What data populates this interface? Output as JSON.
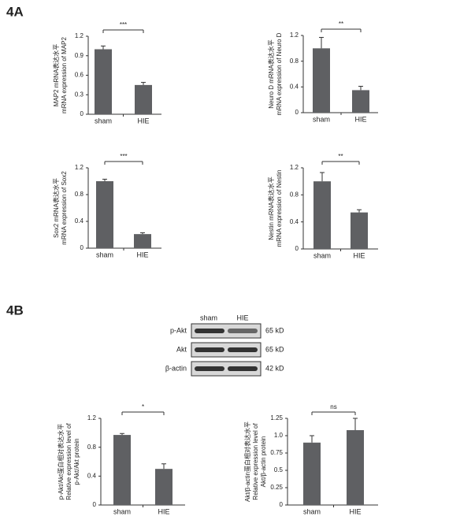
{
  "panels": {
    "a": "4A",
    "b": "4B"
  },
  "blot": {
    "columns": [
      "sham",
      "HIE"
    ],
    "rows": [
      {
        "label": "p-Akt",
        "size": "65 kD"
      },
      {
        "label": "Akt",
        "size": "65 kD"
      },
      {
        "label": "β-actin",
        "size": "42 kD"
      }
    ]
  },
  "chart_data": [
    {
      "type": "bar",
      "ylabel": [
        "MAP2 mRNA表达水平",
        "mRNA expression of MAP2"
      ],
      "categories": [
        "sham",
        "HIE"
      ],
      "values": [
        1.0,
        0.45
      ],
      "errors": [
        0.05,
        0.04
      ],
      "color": "#5f6063",
      "annotation": "***",
      "ylim": [
        0,
        1.2
      ],
      "yticks": [
        0,
        0.3,
        0.6,
        0.9,
        1.2
      ]
    },
    {
      "type": "bar",
      "ylabel": [
        "Neuro D mRNA表达水平",
        "mRNA expression of Neuro D"
      ],
      "categories": [
        "sham",
        "HIE"
      ],
      "values": [
        1.0,
        0.35
      ],
      "errors": [
        0.17,
        0.06
      ],
      "color": "#5f6063",
      "annotation": "**",
      "ylim": [
        0,
        1.2
      ],
      "yticks": [
        0,
        0.4,
        0.8,
        1.2
      ]
    },
    {
      "type": "bar",
      "ylabel": [
        "Sox2 mRNA表达水平",
        "mRNA expression of Sox2"
      ],
      "categories": [
        "sham",
        "HIE"
      ],
      "values": [
        1.0,
        0.21
      ],
      "errors": [
        0.03,
        0.02
      ],
      "color": "#5f6063",
      "annotation": "***",
      "ylim": [
        0,
        1.2
      ],
      "yticks": [
        0,
        0.4,
        0.8,
        1.2
      ]
    },
    {
      "type": "bar",
      "ylabel": [
        "Nestin mRNA表达水平",
        "mRNA expression of Nestin"
      ],
      "categories": [
        "sham",
        "HIE"
      ],
      "values": [
        1.0,
        0.54
      ],
      "errors": [
        0.13,
        0.04
      ],
      "color": "#5f6063",
      "annotation": "**",
      "ylim": [
        0,
        1.2
      ],
      "yticks": [
        0,
        0.4,
        0.8,
        1.2
      ]
    },
    {
      "type": "bar",
      "ylabel": [
        "p-Akt/Akt蛋白相对表达水平",
        "Relative expression level of",
        "p-Akt/Akt protein"
      ],
      "categories": [
        "sham",
        "HIE"
      ],
      "values": [
        0.97,
        0.5
      ],
      "errors": [
        0.02,
        0.07
      ],
      "color": "#5f6063",
      "annotation": "*",
      "ylim": [
        0,
        1.2
      ],
      "yticks": [
        0,
        0.4,
        0.8,
        1.2
      ]
    },
    {
      "type": "bar",
      "ylabel": [
        "Akt/β-actin蛋白相对表达水平",
        "Relative expression level of",
        "Akt/β-actin protein"
      ],
      "categories": [
        "sham",
        "HIE"
      ],
      "values": [
        0.9,
        1.08
      ],
      "errors": [
        0.1,
        0.17
      ],
      "color": "#5f6063",
      "annotation": "ns",
      "ylim": [
        0,
        1.25
      ],
      "yticks": [
        0,
        0.25,
        0.5,
        0.75,
        {
          "value": 1,
          "label": "1.0"
        },
        1.25
      ]
    }
  ]
}
